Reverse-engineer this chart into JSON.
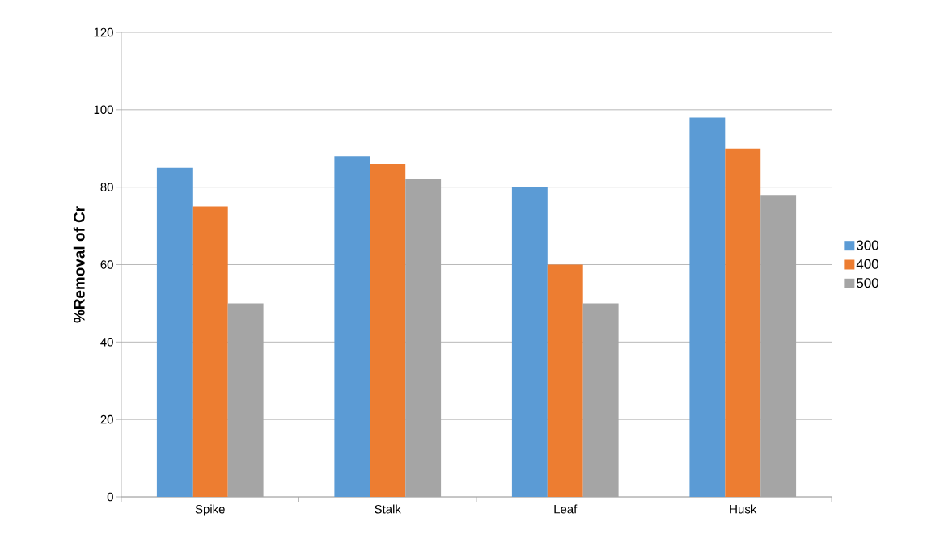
{
  "chart_data": {
    "type": "bar",
    "ylabel": "%Removal of Cr",
    "categories": [
      "Spike",
      "Stalk",
      "Leaf",
      "Husk"
    ],
    "series": [
      {
        "name": "300",
        "color": "#5b9bd5",
        "values": [
          85,
          88,
          80,
          98
        ]
      },
      {
        "name": "400",
        "color": "#ed7d31",
        "values": [
          75,
          86,
          60,
          90
        ]
      },
      {
        "name": "500",
        "color": "#a5a5a5",
        "values": [
          50,
          82,
          50,
          78
        ]
      }
    ],
    "ylim": [
      0,
      120
    ],
    "yticks": [
      0,
      20,
      40,
      60,
      80,
      100,
      120
    ],
    "grid": "y",
    "legend": "right"
  }
}
